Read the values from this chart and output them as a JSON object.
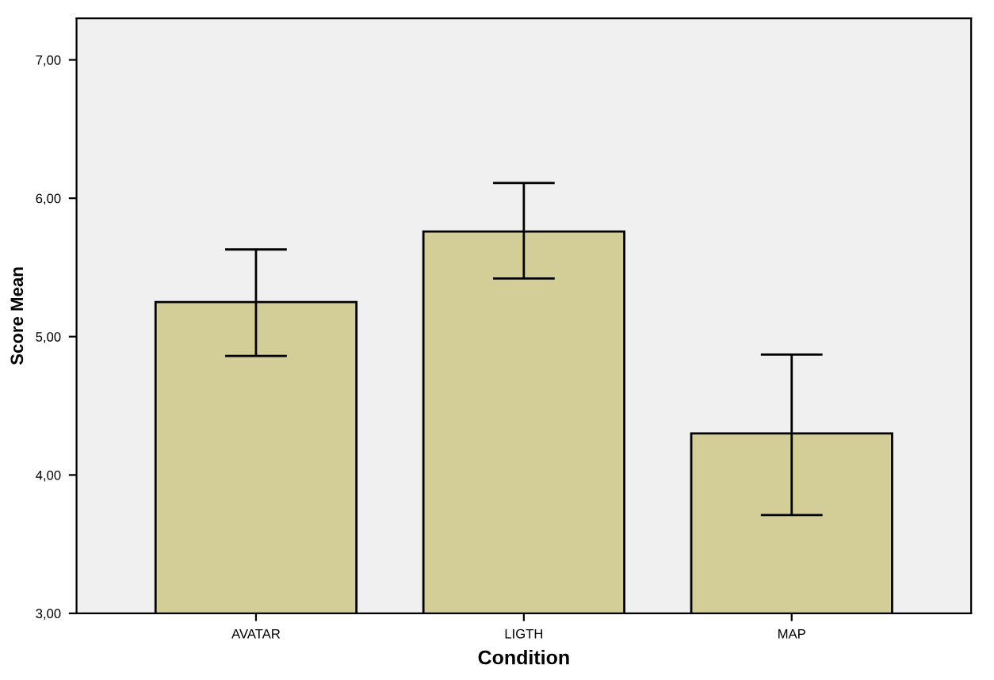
{
  "chart_data": {
    "type": "bar",
    "xlabel": "Condition",
    "ylabel": "Score Mean",
    "categories": [
      "AVATAR",
      "LIGTH",
      "MAP"
    ],
    "values": [
      5.25,
      5.76,
      4.3
    ],
    "errors": [
      [
        4.86,
        5.63
      ],
      [
        5.42,
        6.11
      ],
      [
        3.71,
        4.87
      ]
    ],
    "color": "#d3ce98",
    "ylim": [
      3,
      7.3
    ],
    "yticks": [
      {
        "value": 3,
        "label": "3,00"
      },
      {
        "value": 4,
        "label": "4,00"
      },
      {
        "value": 5,
        "label": "5,00"
      },
      {
        "value": 6,
        "label": "6,00"
      },
      {
        "value": 7,
        "label": "7,00"
      }
    ],
    "grid": false
  }
}
